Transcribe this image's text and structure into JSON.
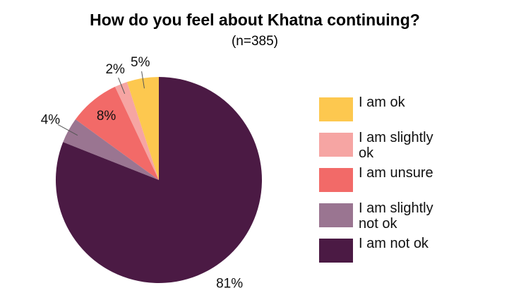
{
  "chart_data": {
    "type": "pie",
    "title": "How do you feel about Khatna continuing?",
    "subtitle": "(n=385)",
    "categories": [
      "I am ok",
      "I am slightly ok",
      "I am unsure",
      "I am slightly not ok",
      "I am not ok"
    ],
    "values": [
      5,
      2,
      8,
      4,
      81
    ],
    "value_labels": [
      "5%",
      "2%",
      "8%",
      "4%",
      "81%"
    ],
    "colors": [
      "#fdc84f",
      "#f6a5a3",
      "#f26a68",
      "#9a7591",
      "#4b1a44"
    ],
    "legend": "right"
  }
}
